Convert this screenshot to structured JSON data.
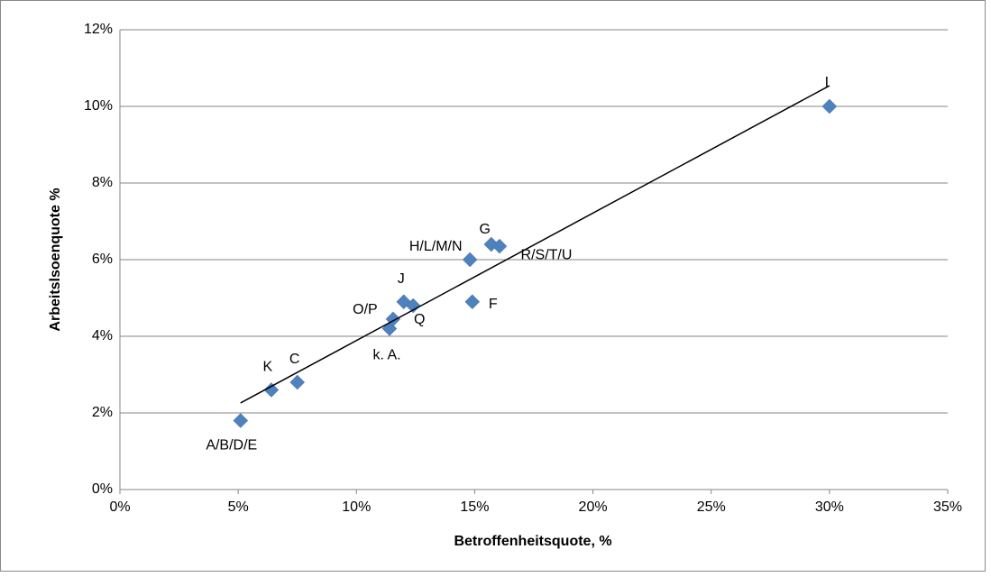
{
  "chart_data": {
    "type": "scatter",
    "x_label": "Betroffenheitsquote, %",
    "y_label": "Arbeitslsoenquote %",
    "labels": [
      "A/B/D/E",
      "K",
      "C",
      "k. A.",
      "O/P",
      "J",
      "Q",
      "H/L/M/N",
      "F",
      "G",
      "R/S/T/U",
      "I"
    ],
    "x": [
      5.1,
      6.4,
      7.5,
      11.4,
      11.55,
      12.0,
      12.4,
      14.8,
      14.9,
      15.7,
      16.05,
      30.0
    ],
    "y": [
      1.8,
      2.6,
      2.8,
      4.2,
      4.45,
      4.9,
      4.8,
      6.0,
      4.9,
      6.4,
      6.35,
      10.0
    ],
    "color": "#4f81bd",
    "trendline": {
      "x": [
        5.1,
        30.0
      ],
      "y": [
        2.26,
        10.54
      ],
      "color": "#000000"
    },
    "xlim": [
      0,
      35
    ],
    "ylim": [
      0,
      12
    ],
    "xticks": [
      {
        "value": 0,
        "label": "0%"
      },
      {
        "value": 5,
        "label": "5%"
      },
      {
        "value": 10,
        "label": "10%"
      },
      {
        "value": 15,
        "label": "15%"
      },
      {
        "value": 20,
        "label": "20%"
      },
      {
        "value": 25,
        "label": "25%"
      },
      {
        "value": 30,
        "label": "30%"
      },
      {
        "value": 35,
        "label": "35%"
      }
    ],
    "yticks": [
      {
        "value": 0,
        "label": "0%"
      },
      {
        "value": 2,
        "label": "2%"
      },
      {
        "value": 4,
        "label": "4%"
      },
      {
        "value": 6,
        "label": "6%"
      },
      {
        "value": 8,
        "label": "8%"
      },
      {
        "value": 10,
        "label": "10%"
      },
      {
        "value": 12,
        "label": "12%"
      }
    ],
    "grid": true
  }
}
